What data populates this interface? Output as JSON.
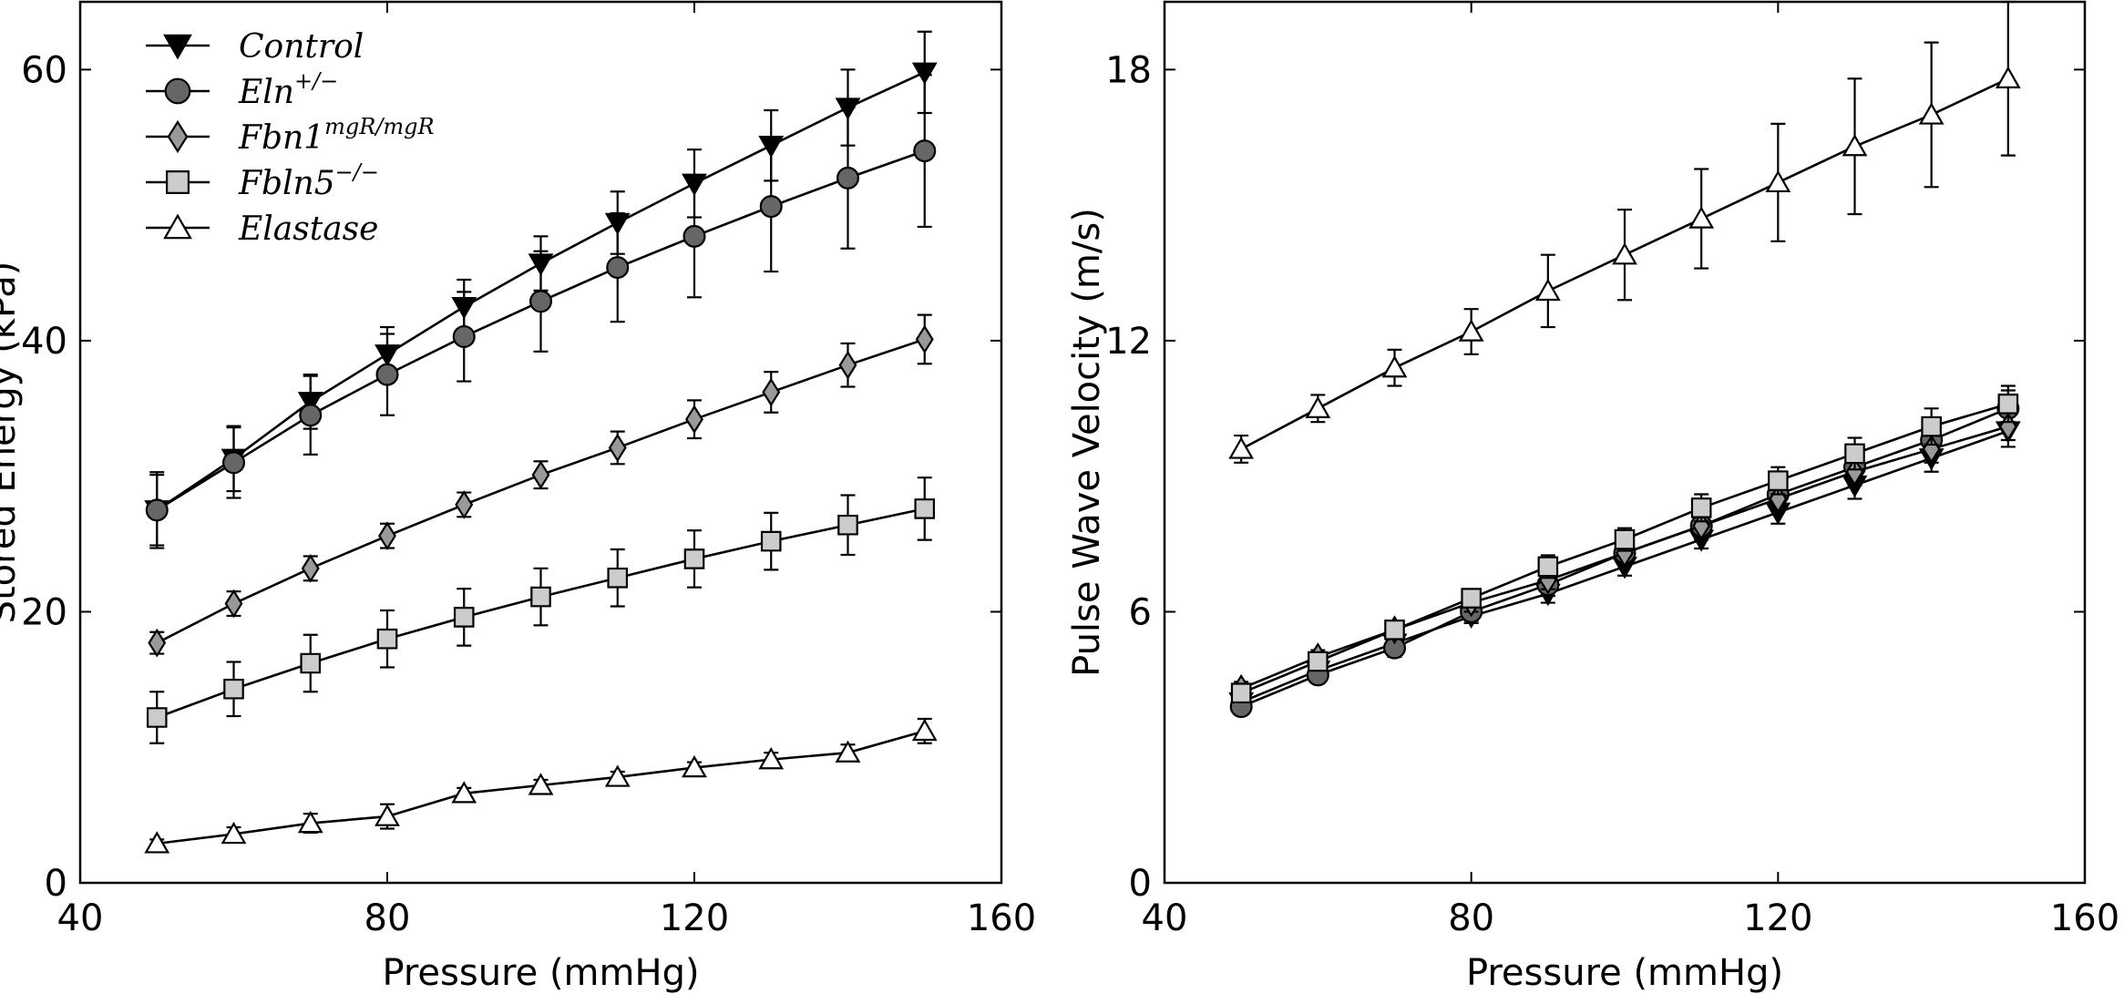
{
  "chart_data": [
    {
      "type": "line",
      "title": "",
      "xlabel": "Pressure (mmHg)",
      "ylabel": "Stored Energy (kPa)",
      "xlim": [
        40,
        160
      ],
      "ylim": [
        0,
        65
      ],
      "xticks": [
        40,
        80,
        120,
        160
      ],
      "yticks": [
        0,
        20,
        40,
        60
      ],
      "grid": false,
      "legend": "top-left",
      "x": [
        50,
        60,
        70,
        80,
        90,
        100,
        110,
        120,
        130,
        140,
        150
      ],
      "series": [
        {
          "name": "Control",
          "marker": "triangle-down",
          "color": "#000000",
          "values": [
            27.5,
            31.3,
            35.5,
            39.0,
            42.5,
            45.7,
            48.7,
            51.6,
            54.4,
            57.2,
            59.8
          ],
          "errors": [
            2.6,
            2.4,
            2.0,
            2.0,
            2.0,
            2.0,
            2.3,
            2.5,
            2.6,
            2.8,
            3.0
          ]
        },
        {
          "name": "Eln+/−",
          "marker": "circle",
          "color": "#666666",
          "values": [
            27.5,
            31.0,
            34.5,
            37.5,
            40.3,
            42.9,
            45.4,
            47.7,
            49.9,
            52.0,
            54.0
          ],
          "errors": [
            2.8,
            2.6,
            2.9,
            3.0,
            3.3,
            3.7,
            4.0,
            4.5,
            4.8,
            5.2,
            5.6
          ]
        },
        {
          "name": "Fbn1mgR/mgR",
          "marker": "diamond",
          "color": "#999999",
          "values": [
            17.7,
            20.6,
            23.2,
            25.6,
            27.9,
            30.1,
            32.1,
            34.2,
            36.2,
            38.2,
            40.1
          ],
          "errors": [
            0.8,
            0.9,
            0.9,
            0.9,
            0.9,
            1.0,
            1.2,
            1.4,
            1.5,
            1.6,
            1.8
          ]
        },
        {
          "name": "Fbln5−/−",
          "marker": "square",
          "color": "#cccccc",
          "values": [
            12.2,
            14.3,
            16.2,
            18.0,
            19.6,
            21.1,
            22.5,
            23.9,
            25.2,
            26.4,
            27.6
          ],
          "errors": [
            1.9,
            2.0,
            2.1,
            2.1,
            2.1,
            2.1,
            2.1,
            2.1,
            2.1,
            2.2,
            2.3
          ]
        },
        {
          "name": "Elastase",
          "marker": "triangle-up",
          "color": "#ffffff",
          "values": [
            2.9,
            3.6,
            4.4,
            4.9,
            6.6,
            7.2,
            7.8,
            8.5,
            9.1,
            9.6,
            11.2
          ],
          "errors": [
            0.3,
            0.5,
            0.7,
            0.9,
            0.4,
            0.4,
            0.4,
            0.4,
            0.5,
            0.6,
            0.9
          ]
        }
      ]
    },
    {
      "type": "line",
      "title": "",
      "xlabel": "Pressure (mmHg)",
      "ylabel": "Pulse Wave Velocity (m/s)",
      "xlim": [
        40,
        160
      ],
      "ylim": [
        0,
        19.5
      ],
      "xticks": [
        40,
        80,
        120,
        160
      ],
      "yticks": [
        0,
        6,
        12,
        18
      ],
      "grid": false,
      "x": [
        50,
        60,
        70,
        80,
        90,
        100,
        110,
        120,
        130,
        140,
        150
      ],
      "series": [
        {
          "name": "Control",
          "marker": "triangle-down",
          "color": "#000000",
          "values": [
            4.0,
            4.7,
            5.3,
            5.9,
            6.4,
            7.0,
            7.6,
            8.2,
            8.8,
            9.4,
            10.0
          ],
          "errors": [
            0.15,
            0.15,
            0.15,
            0.15,
            0.2,
            0.2,
            0.2,
            0.25,
            0.3,
            0.3,
            0.35
          ]
        },
        {
          "name": "Eln+/−",
          "marker": "circle",
          "color": "#666666",
          "values": [
            3.9,
            4.6,
            5.2,
            6.0,
            6.6,
            7.3,
            7.9,
            8.6,
            9.2,
            9.8,
            10.5
          ],
          "errors": [
            0.15,
            0.15,
            0.2,
            0.2,
            0.25,
            0.25,
            0.3,
            0.3,
            0.35,
            0.35,
            0.4
          ]
        },
        {
          "name": "Fbn1mgR/mgR",
          "marker": "diamond",
          "color": "#999999",
          "values": [
            4.3,
            5.0,
            5.6,
            6.2,
            6.7,
            7.3,
            7.9,
            8.5,
            9.1,
            9.6,
            10.1
          ],
          "errors": [
            0.15,
            0.15,
            0.15,
            0.2,
            0.2,
            0.2,
            0.25,
            0.25,
            0.3,
            0.3,
            0.3
          ]
        },
        {
          "name": "Fbln5−/−",
          "marker": "square",
          "color": "#cccccc",
          "values": [
            4.2,
            4.9,
            5.6,
            6.3,
            7.0,
            7.6,
            8.3,
            8.9,
            9.5,
            10.1,
            10.6
          ],
          "errors": [
            0.15,
            0.15,
            0.2,
            0.2,
            0.25,
            0.25,
            0.3,
            0.3,
            0.35,
            0.4,
            0.4
          ]
        },
        {
          "name": "Elastase",
          "marker": "triangle-up",
          "color": "#ffffff",
          "values": [
            9.6,
            10.5,
            11.4,
            12.2,
            13.1,
            13.9,
            14.7,
            15.5,
            16.3,
            17.0,
            17.8
          ],
          "errors": [
            0.3,
            0.3,
            0.4,
            0.5,
            0.8,
            1.0,
            1.1,
            1.3,
            1.5,
            1.6,
            1.7
          ]
        }
      ]
    }
  ],
  "legend": {
    "entries": [
      {
        "base": "Control",
        "sup": ""
      },
      {
        "base": "Eln",
        "sup": "+/−"
      },
      {
        "base": "Fbn1",
        "sup": "mgR/mgR"
      },
      {
        "base": "Fbln5",
        "sup": "−/−"
      },
      {
        "base": "Elastase",
        "sup": ""
      }
    ]
  }
}
